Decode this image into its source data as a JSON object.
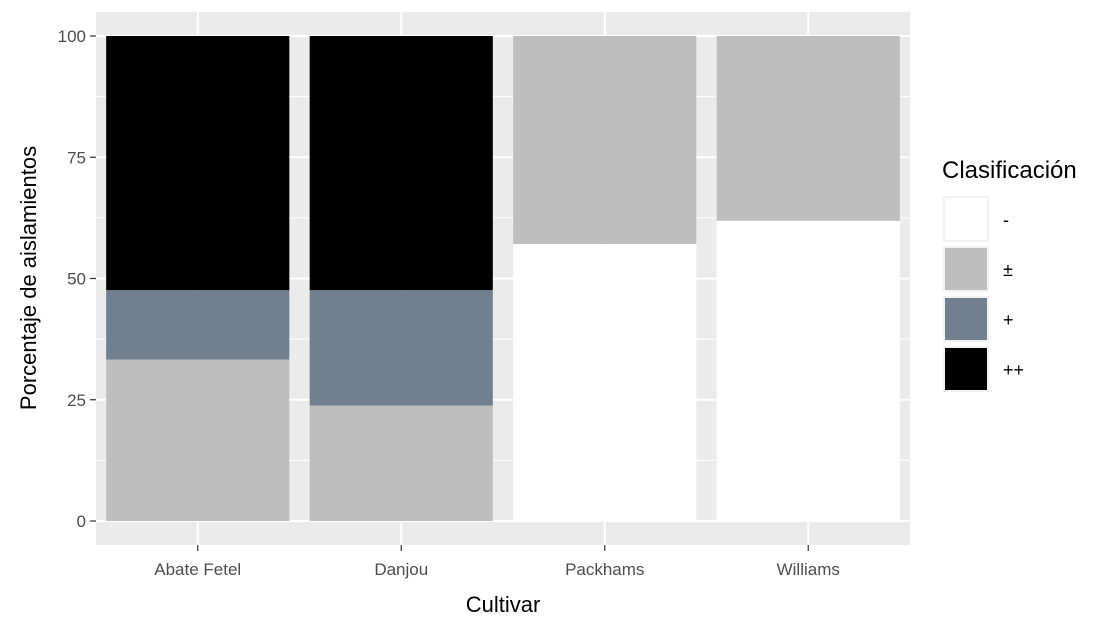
{
  "chart_data": {
    "type": "bar",
    "stacked": true,
    "categories": [
      "Abate Fetel",
      "Danjou",
      "Packhams",
      "Williams"
    ],
    "series": [
      {
        "name": "-",
        "color": "#ffffff",
        "values": [
          0,
          0,
          57.1,
          61.9
        ]
      },
      {
        "name": "±",
        "color": "#bebebe",
        "values": [
          33.3,
          23.8,
          42.9,
          38.1
        ]
      },
      {
        "name": "+",
        "color": "#708090",
        "values": [
          14.3,
          23.8,
          0,
          0
        ]
      },
      {
        "name": "++",
        "color": "#000000",
        "values": [
          52.4,
          52.4,
          0,
          0
        ]
      }
    ],
    "xlabel": "Cultivar",
    "ylabel": "Porcentaje de aislamientos",
    "ylim": [
      0,
      100
    ],
    "yticks": [
      0,
      25,
      50,
      75,
      100
    ],
    "legend_title": "Clasificación",
    "legend_position": "right",
    "grid": true,
    "panel_background": "#ebebeb",
    "grid_color": "#ffffff"
  }
}
